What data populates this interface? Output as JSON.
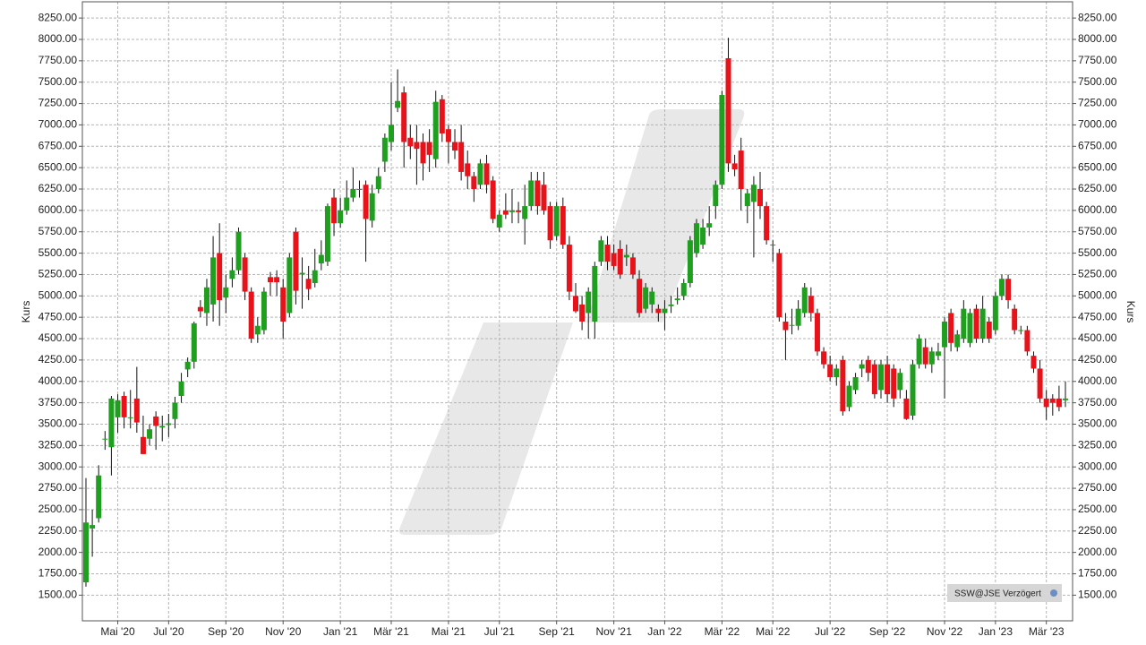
{
  "chart_data": {
    "type": "candlestick",
    "y_axis_label": "Kurs",
    "badge": "SSW@JSE Verzögert",
    "grid": true,
    "up_color": "#1f9e1f",
    "down_color": "#e8121a",
    "ylim": [
      1200,
      8440
    ],
    "yticks": [
      {
        "value": 1500,
        "label": "1500.00"
      },
      {
        "value": 1750,
        "label": "1750.00"
      },
      {
        "value": 2000,
        "label": "2000.00"
      },
      {
        "value": 2250,
        "label": "2250.00"
      },
      {
        "value": 2500,
        "label": "2500.00"
      },
      {
        "value": 2750,
        "label": "2750.00"
      },
      {
        "value": 3000,
        "label": "3000.00"
      },
      {
        "value": 3250,
        "label": "3250.00"
      },
      {
        "value": 3500,
        "label": "3500.00"
      },
      {
        "value": 3750,
        "label": "3750.00"
      },
      {
        "value": 4000,
        "label": "4000.00"
      },
      {
        "value": 4250,
        "label": "4250.00"
      },
      {
        "value": 4500,
        "label": "4500.00"
      },
      {
        "value": 4750,
        "label": "4750.00"
      },
      {
        "value": 5000,
        "label": "5000.00"
      },
      {
        "value": 5250,
        "label": "5250.00"
      },
      {
        "value": 5500,
        "label": "5500.00"
      },
      {
        "value": 5750,
        "label": "5750.00"
      },
      {
        "value": 6000,
        "label": "6000.00"
      },
      {
        "value": 6250,
        "label": "6250.00"
      },
      {
        "value": 6500,
        "label": "6500.00"
      },
      {
        "value": 6750,
        "label": "6750.00"
      },
      {
        "value": 7000,
        "label": "7000.00"
      },
      {
        "value": 7250,
        "label": "7250.00"
      },
      {
        "value": 7500,
        "label": "7500.00"
      },
      {
        "value": 7750,
        "label": "7750.00"
      },
      {
        "value": 8000,
        "label": "8000.00"
      },
      {
        "value": 8250,
        "label": "8250.00"
      }
    ],
    "categories": [
      null,
      null,
      null,
      null,
      null,
      "Mai '20",
      null,
      null,
      null,
      null,
      null,
      null,
      null,
      "Jul '20",
      null,
      null,
      null,
      null,
      null,
      null,
      null,
      null,
      "Sep '20",
      null,
      null,
      null,
      null,
      null,
      null,
      null,
      null,
      "Nov '20",
      null,
      null,
      null,
      null,
      null,
      null,
      null,
      null,
      "Jan '21",
      null,
      null,
      null,
      null,
      null,
      null,
      null,
      "Mär '21",
      null,
      null,
      null,
      null,
      null,
      null,
      null,
      null,
      "Mai '21",
      null,
      null,
      null,
      null,
      null,
      null,
      null,
      "Jul '21",
      null,
      null,
      null,
      null,
      null,
      null,
      null,
      null,
      "Sep '21",
      null,
      null,
      null,
      null,
      null,
      null,
      null,
      null,
      "Nov '21",
      null,
      null,
      null,
      null,
      null,
      null,
      null,
      "Jan '22",
      null,
      null,
      null,
      null,
      null,
      null,
      null,
      null,
      "Mär '22",
      null,
      null,
      null,
      null,
      null,
      null,
      null,
      "Mai '22",
      null,
      null,
      null,
      null,
      null,
      null,
      null,
      null,
      "Jul '22",
      null,
      null,
      null,
      null,
      null,
      null,
      null,
      null,
      "Sep '22",
      null,
      null,
      null,
      null,
      null,
      null,
      null,
      null,
      "Nov '22",
      null,
      null,
      null,
      null,
      null,
      null,
      null,
      "Jan '23",
      null,
      null,
      null,
      null,
      null,
      null,
      null,
      "Mär '23",
      null,
      null,
      null
    ],
    "open": [
      1650,
      2280,
      2400,
      3320,
      3230,
      3580,
      3830,
      3570,
      3800,
      3350,
      3330,
      3590,
      3460,
      3490,
      3560,
      3830,
      4140,
      4230,
      4870,
      4800,
      4900,
      5500,
      4980,
      5200,
      5300,
      5450,
      5050,
      4550,
      4600,
      5220,
      5220,
      5100,
      4800,
      5750,
      5250,
      5200,
      5150,
      5380,
      5400,
      6150,
      5850,
      6000,
      6150,
      6240,
      6300,
      5880,
      6250,
      6570,
      6800,
      7200,
      7380,
      6850,
      6800,
      6800,
      6800,
      6600,
      7300,
      6950,
      6800,
      6800,
      6550,
      6400,
      6300,
      6550,
      6350,
      5800,
      6000,
      5980,
      6000,
      5900,
      6050,
      6350,
      6300,
      6050,
      5700,
      6050,
      5600,
      5000,
      4900,
      4800,
      4700,
      5400,
      5600,
      5500,
      5550,
      5450,
      5450,
      5200,
      4850,
      4900,
      4850,
      4800,
      4880,
      4950,
      5000,
      5150,
      5500,
      5600,
      5800,
      6050,
      6300,
      7780,
      6550,
      6700,
      6050,
      6100,
      6250,
      6050,
      5600,
      5500,
      4700,
      4650,
      4650,
      4800,
      5000,
      4800,
      4350,
      4200,
      4050,
      4250,
      3700,
      3900,
      4150,
      4250,
      4200,
      3900,
      4200,
      4150,
      3900,
      3800,
      3600,
      4200,
      4400,
      4200,
      4300,
      4400,
      4800,
      4400,
      4500,
      4450,
      4850,
      4500,
      4700,
      4600,
      5000,
      5200,
      4850,
      4600,
      4600,
      4300,
      4150,
      3800,
      3800,
      3800,
      3780
    ],
    "high": [
      2870,
      2500,
      3020,
      3420,
      3830,
      3850,
      3880,
      3900,
      4170,
      3600,
      3500,
      3650,
      3600,
      3620,
      3820,
      4100,
      4280,
      4700,
      4950,
      5200,
      5700,
      5850,
      5250,
      5450,
      5800,
      5500,
      5100,
      4750,
      5100,
      5280,
      5300,
      5200,
      5500,
      5800,
      5450,
      5350,
      5550,
      5650,
      6080,
      6250,
      6150,
      6350,
      6500,
      6350,
      6350,
      6300,
      6500,
      6900,
      7500,
      7650,
      7450,
      7000,
      7000,
      6900,
      6950,
      7400,
      7350,
      7000,
      6950,
      7000,
      6700,
      6450,
      6600,
      6650,
      6400,
      6000,
      6200,
      6250,
      6100,
      6300,
      6450,
      6450,
      6450,
      6100,
      6100,
      6150,
      5700,
      5150,
      5000,
      5100,
      5400,
      5700,
      5700,
      5600,
      5650,
      5600,
      5500,
      5300,
      5150,
      5100,
      4900,
      4950,
      5000,
      5100,
      5200,
      5700,
      5900,
      5900,
      6050,
      6350,
      7400,
      8020,
      6650,
      6850,
      6250,
      6400,
      6450,
      6100,
      5650,
      5550,
      4800,
      4850,
      4950,
      5150,
      5100,
      4850,
      4400,
      4300,
      4200,
      4300,
      4000,
      4100,
      4250,
      4300,
      4250,
      4250,
      4300,
      4200,
      4150,
      3900,
      4250,
      4550,
      4500,
      4400,
      4450,
      4750,
      4850,
      4600,
      4950,
      4850,
      4900,
      5000,
      4750,
      5050,
      5250,
      5250,
      4900,
      4650,
      4650,
      4350,
      4250,
      3900,
      3850,
      3950,
      4000
    ],
    "low": [
      1600,
      1950,
      2350,
      3200,
      2900,
      3400,
      3450,
      3450,
      3400,
      3150,
      3250,
      3200,
      3300,
      3350,
      3450,
      3750,
      4050,
      4150,
      4750,
      4650,
      4700,
      4650,
      4800,
      5100,
      5250,
      4950,
      4450,
      4450,
      4550,
      5000,
      5000,
      4500,
      4750,
      4900,
      4850,
      4950,
      5100,
      5300,
      5350,
      5700,
      5800,
      5950,
      6100,
      6150,
      5400,
      5800,
      6200,
      6450,
      6700,
      7150,
      6500,
      6600,
      6300,
      6350,
      6450,
      6500,
      6800,
      6550,
      6600,
      6350,
      6250,
      6100,
      6250,
      6200,
      5850,
      5750,
      5900,
      5850,
      5850,
      5600,
      6000,
      5950,
      5950,
      5550,
      5650,
      5550,
      4950,
      4800,
      4600,
      4500,
      4500,
      5350,
      5300,
      5300,
      5200,
      5350,
      5200,
      4750,
      4800,
      4800,
      4700,
      4600,
      4800,
      4900,
      4950,
      5100,
      5450,
      5550,
      5700,
      5900,
      6250,
      6450,
      6400,
      6000,
      5850,
      5450,
      5900,
      5600,
      5400,
      4700,
      4250,
      4550,
      4600,
      4750,
      4700,
      4300,
      4150,
      4000,
      3950,
      3600,
      3650,
      3850,
      4050,
      4000,
      3800,
      3800,
      3750,
      3700,
      3800,
      3550,
      3550,
      4150,
      4150,
      4100,
      4250,
      3800,
      4350,
      4350,
      4450,
      4400,
      4450,
      4450,
      4450,
      4550,
      4950,
      4850,
      4550,
      4550,
      4300,
      4100,
      3750,
      3550,
      3600,
      3650,
      3700
    ],
    "close": [
      2350,
      2320,
      2900,
      3330,
      3800,
      3780,
      3580,
      3580,
      3520,
      3150,
      3440,
      3480,
      3480,
      3510,
      3750,
      4000,
      4230,
      4680,
      4820,
      5100,
      5450,
      4950,
      5100,
      5300,
      5750,
      5050,
      4500,
      4650,
      5050,
      5160,
      5160,
      4700,
      5450,
      5060,
      5270,
      5080,
      5300,
      5480,
      6050,
      5850,
      6000,
      6150,
      6250,
      6250,
      5900,
      6200,
      6400,
      6850,
      7000,
      7280,
      6800,
      6750,
      6720,
      6550,
      6650,
      7270,
      6900,
      6800,
      6700,
      6450,
      6400,
      6250,
      6550,
      6300,
      5900,
      5950,
      5950,
      6000,
      5980,
      6050,
      6350,
      6050,
      6000,
      5650,
      6050,
      5600,
      5050,
      4820,
      4700,
      5050,
      5350,
      5650,
      5400,
      5350,
      5250,
      5480,
      5250,
      4800,
      5100,
      5050,
      4800,
      4850,
      4900,
      4970,
      5150,
      5650,
      5850,
      5800,
      5850,
      6300,
      7350,
      6550,
      6480,
      6250,
      6200,
      6300,
      6050,
      5650,
      5600,
      4750,
      4600,
      4660,
      4850,
      5100,
      4800,
      4350,
      4200,
      4050,
      4150,
      3650,
      3950,
      4050,
      4200,
      4100,
      3850,
      4200,
      3850,
      3800,
      4100,
      3560,
      4200,
      4500,
      4200,
      4350,
      4350,
      4700,
      4450,
      4550,
      4850,
      4800,
      4500,
      4850,
      4500,
      5000,
      5200,
      4950,
      4600,
      4600,
      4350,
      4150,
      3800,
      3700,
      3750,
      3700,
      3800
    ]
  }
}
